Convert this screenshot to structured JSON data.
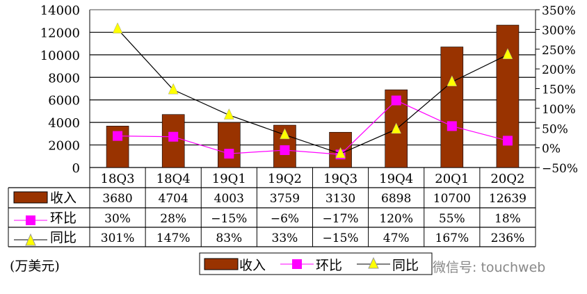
{
  "chart_data": {
    "type": "bar+line",
    "categories": [
      "18Q3",
      "18Q4",
      "19Q1",
      "19Q2",
      "19Q3",
      "19Q4",
      "20Q1",
      "20Q2"
    ],
    "series": [
      {
        "name": "收入",
        "type": "bar",
        "axis": "left",
        "color": "#993300",
        "values": [
          3680,
          4704,
          4003,
          3759,
          3130,
          6898,
          10700,
          12639
        ],
        "labels": [
          "3680",
          "4704",
          "4003",
          "3759",
          "3130",
          "6898",
          "10700",
          "12639"
        ]
      },
      {
        "name": "环比",
        "type": "line",
        "axis": "right",
        "color": "#ff00ff",
        "marker": "square",
        "values": [
          30,
          28,
          -15,
          -6,
          -17,
          120,
          55,
          18
        ],
        "labels": [
          "30%",
          "28%",
          "-15%",
          "-6%",
          "-17%",
          "120%",
          "55%",
          "18%"
        ]
      },
      {
        "name": "同比",
        "type": "line",
        "axis": "right",
        "color": "#000000",
        "marker": "triangle",
        "marker_color": "#ffff00",
        "values": [
          301,
          147,
          83,
          33,
          -15,
          47,
          167,
          236
        ],
        "labels": [
          "301%",
          "147%",
          "83%",
          "33%",
          "-15%",
          "47%",
          "167%",
          "236%"
        ]
      }
    ],
    "left_axis": {
      "ylim": [
        0,
        14000
      ],
      "ticks": [
        "0",
        "2000",
        "4000",
        "6000",
        "8000",
        "10000",
        "12000",
        "14000"
      ]
    },
    "right_axis": {
      "ylim": [
        -50,
        350
      ],
      "ticks": [
        "-50%",
        "0%",
        "50%",
        "100%",
        "150%",
        "200%",
        "250%",
        "300%",
        "350%"
      ]
    },
    "grid": true,
    "legend": "bottom",
    "unit_label": "(万美元)"
  },
  "watermark": "微信号: touchweb"
}
